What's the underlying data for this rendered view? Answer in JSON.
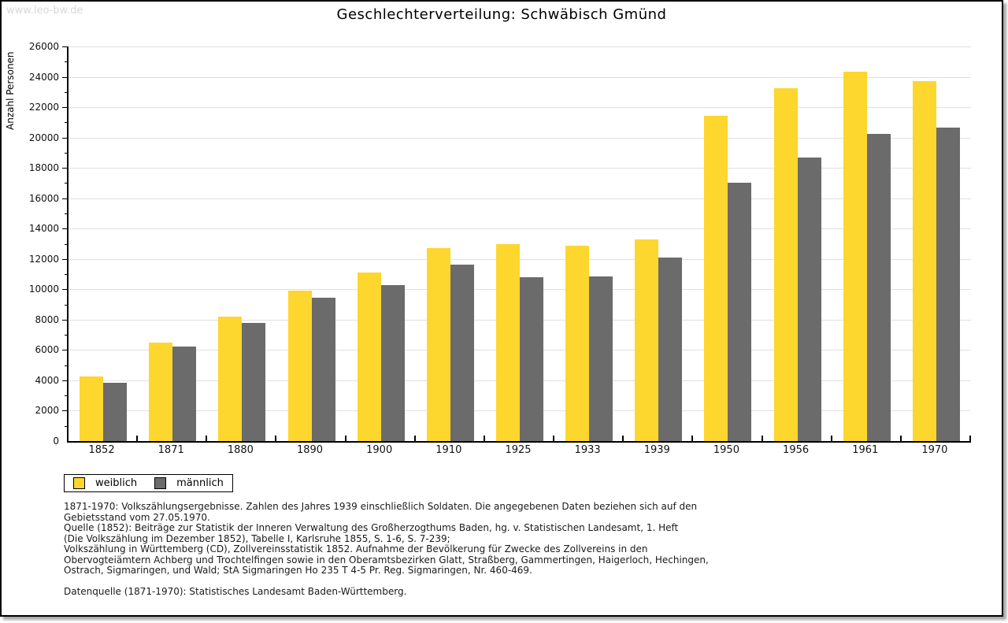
{
  "site": "www.leo-bw.de",
  "header": {
    "title": "Geschlechterverteilung: Schwäbisch Gmünd"
  },
  "chart_data": {
    "type": "bar",
    "title": "Geschlechterverteilung: Schwäbisch Gmünd",
    "xlabel": "",
    "ylabel": "Anzahl Personen",
    "ylim": [
      0,
      26000
    ],
    "ytick_step": 2000,
    "yminor_step": 1000,
    "grid": true,
    "legend_position": "bottom-left",
    "categories": [
      "1852",
      "1871",
      "1880",
      "1890",
      "1900",
      "1910",
      "1925",
      "1933",
      "1939",
      "1950",
      "1956",
      "1961",
      "1970"
    ],
    "series": [
      {
        "name": "weiblich",
        "color": "#FDD62E",
        "values": [
          4250,
          6500,
          8200,
          9900,
          11100,
          12700,
          12950,
          12850,
          13300,
          21450,
          23250,
          24350,
          23700
        ]
      },
      {
        "name": "männlich",
        "color": "#6B6B6B",
        "values": [
          3850,
          6250,
          7800,
          9450,
          10300,
          11650,
          10800,
          10850,
          12100,
          17000,
          18700,
          20250,
          20650
        ]
      }
    ]
  },
  "colors": {
    "female": "#FDD62E",
    "male": "#6B6B6B",
    "gridline": "#e0e0e0",
    "watermark": "#d8d8d8"
  },
  "footnotes": [
    "1871-1970: Volkszählungsergebnisse. Zahlen des Jahres 1939 einschließlich Soldaten. Die angegebenen Daten beziehen sich auf den",
    "Gebietsstand vom 27.05.1970.",
    "Quelle (1852): Beiträge zur Statistik der Inneren Verwaltung des Großherzogthums Baden, hg. v. Statistischen Landesamt, 1. Heft",
    "(Die Volkszählung im Dezember 1852), Tabelle I, Karlsruhe 1855, S. 1-6, S. 7-239;",
    "Volkszählung in Württemberg (CD), Zollvereinsstatistik 1852. Aufnahme der Bevölkerung für Zwecke des Zollvereins in den",
    "Obervogteiämtern Achberg und Trochtelfingen sowie in den Oberamtsbezirken Glatt, Straßberg, Gammertingen, Haigerloch, Hechingen,",
    "Ostrach, Sigmaringen, und Wald; StA Sigmaringen Ho 235 T 4-5 Pr. Reg. Sigmaringen, Nr. 460-469."
  ],
  "datasource": "Datenquelle (1871-1970): Statistisches Landesamt Baden-Württemberg."
}
